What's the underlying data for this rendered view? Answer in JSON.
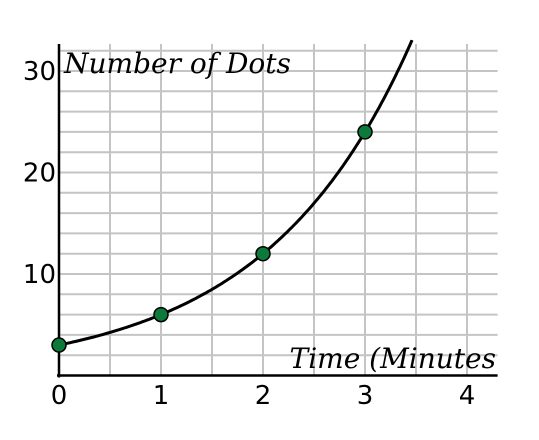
{
  "chart_data": {
    "type": "scatter",
    "title": "",
    "xlabel": "Time (Minutes",
    "ylabel": "Number of Dots",
    "xlim": [
      0,
      4.3
    ],
    "ylim": [
      0,
      32
    ],
    "x_ticks": [
      "0",
      "1",
      "2",
      "3",
      "4"
    ],
    "y_ticks": [
      "10",
      "20",
      "30"
    ],
    "grid": true,
    "x_minor_step": 0.5,
    "y_minor_step": 2,
    "series": [
      {
        "x": [
          0,
          1,
          2,
          3
        ],
        "y": [
          3,
          6,
          12,
          24
        ],
        "color": "#0b7a3b",
        "curve": "exponential",
        "curve_formula": "3 * 2^x"
      }
    ]
  }
}
